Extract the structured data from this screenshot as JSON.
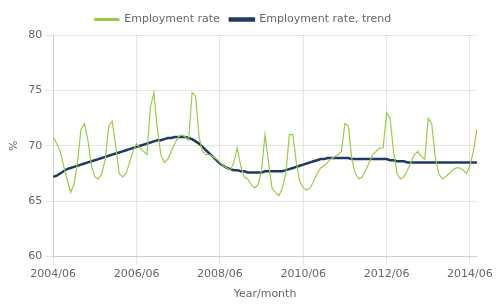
{
  "chart_data": {
    "type": "line",
    "xlabel": "Year/month",
    "ylabel": "%",
    "categories": [
      "2004/06",
      null,
      null,
      null,
      null,
      null,
      null,
      null,
      null,
      null,
      null,
      null,
      null,
      null,
      null,
      null,
      null,
      null,
      null,
      null,
      null,
      null,
      null,
      null,
      "2006/06",
      null,
      null,
      null,
      null,
      null,
      null,
      null,
      null,
      null,
      null,
      null,
      null,
      null,
      null,
      null,
      null,
      null,
      null,
      null,
      null,
      null,
      null,
      null,
      "2008/06",
      null,
      null,
      null,
      null,
      null,
      null,
      null,
      null,
      null,
      null,
      null,
      null,
      null,
      null,
      null,
      null,
      null,
      null,
      null,
      null,
      null,
      null,
      null,
      "2010/06",
      null,
      null,
      null,
      null,
      null,
      null,
      null,
      null,
      null,
      null,
      null,
      null,
      null,
      null,
      null,
      null,
      null,
      null,
      null,
      null,
      null,
      null,
      null,
      "2012/06",
      null,
      null,
      null,
      null,
      null,
      null,
      null,
      null,
      null,
      null,
      null,
      null,
      null,
      null,
      null,
      null,
      null,
      null,
      null,
      null,
      null,
      null,
      null,
      "2014/06",
      null,
      null
    ],
    "series": [
      {
        "name": "Employment rate",
        "color": "#99cc44",
        "values": [
          70.8,
          70.2,
          69.5,
          68.2,
          67.0,
          65.8,
          66.5,
          68.5,
          71.5,
          72.0,
          70.5,
          68.2,
          67.2,
          67.0,
          67.5,
          68.8,
          71.8,
          72.2,
          70.0,
          67.5,
          67.2,
          67.5,
          68.5,
          69.5,
          70.2,
          69.8,
          69.5,
          69.2,
          73.5,
          74.8,
          71.5,
          69.2,
          68.5,
          68.8,
          69.5,
          70.2,
          70.8,
          71.0,
          70.8,
          70.5,
          74.8,
          74.5,
          70.8,
          69.5,
          69.2,
          69.2,
          69.0,
          68.8,
          68.5,
          68.2,
          68.0,
          67.8,
          68.5,
          69.8,
          68.2,
          67.2,
          67.0,
          66.5,
          66.2,
          66.5,
          67.8,
          71.0,
          68.5,
          66.2,
          65.8,
          65.5,
          66.2,
          67.5,
          71.0,
          71.0,
          68.5,
          66.8,
          66.2,
          66.0,
          66.2,
          66.8,
          67.5,
          68.0,
          68.2,
          68.5,
          68.8,
          69.0,
          69.2,
          69.5,
          72.0,
          71.8,
          68.8,
          67.5,
          67.0,
          67.2,
          67.8,
          68.5,
          69.2,
          69.5,
          69.8,
          69.8,
          73.0,
          72.5,
          69.5,
          67.5,
          67.0,
          67.2,
          67.8,
          68.5,
          69.2,
          69.5,
          69.0,
          68.8,
          72.5,
          72.0,
          69.0,
          67.5,
          67.0,
          67.2,
          67.5,
          67.8,
          68.0,
          68.0,
          67.8,
          67.5,
          68.2,
          69.5,
          71.5
        ]
      },
      {
        "name": "Employment rate, trend",
        "color": "#1f3864",
        "values": [
          67.2,
          67.3,
          67.5,
          67.7,
          67.9,
          68.0,
          68.1,
          68.2,
          68.3,
          68.4,
          68.5,
          68.6,
          68.7,
          68.8,
          68.9,
          69.0,
          69.1,
          69.2,
          69.3,
          69.4,
          69.5,
          69.6,
          69.7,
          69.8,
          69.9,
          70.0,
          70.1,
          70.2,
          70.3,
          70.4,
          70.5,
          70.5,
          70.6,
          70.7,
          70.7,
          70.8,
          70.8,
          70.8,
          70.8,
          70.7,
          70.6,
          70.4,
          70.2,
          69.9,
          69.6,
          69.3,
          69.0,
          68.7,
          68.4,
          68.2,
          68.0,
          67.9,
          67.8,
          67.8,
          67.7,
          67.7,
          67.6,
          67.6,
          67.6,
          67.6,
          67.6,
          67.7,
          67.7,
          67.7,
          67.7,
          67.7,
          67.7,
          67.8,
          67.9,
          68.0,
          68.1,
          68.2,
          68.3,
          68.4,
          68.5,
          68.6,
          68.7,
          68.8,
          68.8,
          68.9,
          68.9,
          68.9,
          68.9,
          68.9,
          68.9,
          68.9,
          68.8,
          68.8,
          68.8,
          68.8,
          68.8,
          68.8,
          68.8,
          68.8,
          68.8,
          68.8,
          68.8,
          68.7,
          68.7,
          68.6,
          68.6,
          68.6,
          68.5,
          68.5,
          68.5,
          68.5,
          68.5,
          68.5,
          68.5,
          68.5,
          68.5,
          68.5,
          68.5,
          68.5,
          68.5,
          68.5,
          68.5,
          68.5,
          68.5,
          68.5,
          68.5,
          68.5,
          68.5
        ]
      }
    ],
    "ylim": [
      60,
      80
    ],
    "yticks": [
      60,
      65,
      70,
      75,
      80
    ],
    "grid": true,
    "legend": "top"
  }
}
